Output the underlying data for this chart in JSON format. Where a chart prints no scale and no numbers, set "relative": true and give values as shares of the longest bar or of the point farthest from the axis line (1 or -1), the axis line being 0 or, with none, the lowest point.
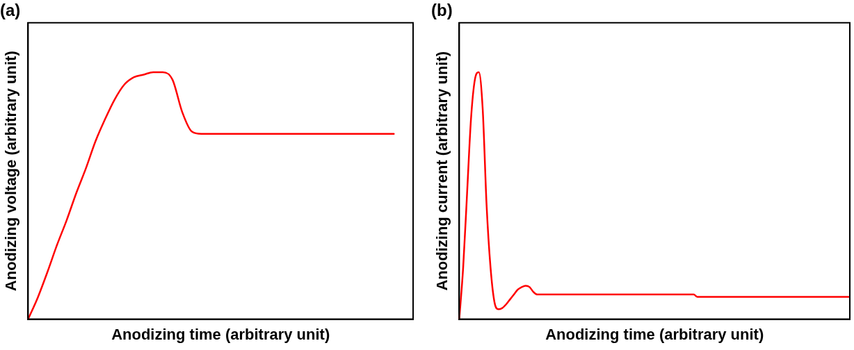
{
  "chart_data": [
    {
      "type": "line",
      "title": "(a)",
      "xlabel": "Anodizing time (arbitrary unit)",
      "ylabel": "Anodizing voltage (arbitrary unit)",
      "relative": true,
      "grid": false,
      "legend": false,
      "marker": "none",
      "line_style": "solid",
      "categories": [
        null,
        null,
        null,
        null,
        null,
        null,
        null,
        null,
        null,
        null,
        null,
        null,
        null,
        null,
        null,
        null,
        null,
        null,
        null,
        null,
        null,
        null,
        null,
        null,
        null,
        null,
        null,
        null,
        null,
        null,
        null,
        null,
        null,
        null,
        null,
        null,
        null,
        null,
        null,
        null,
        null
      ],
      "series": [
        {
          "color": "#ff0000",
          "values": [
            0,
            0.087,
            0.19,
            0.3,
            0.4,
            0.51,
            0.61,
            0.72,
            0.81,
            0.89,
            0.95,
            0.98,
            0.99,
            1,
            1,
            0.97,
            0.84,
            0.76,
            0.75,
            0.75,
            0.75,
            0.75,
            0.75,
            0.75,
            0.75,
            0.75,
            0.75,
            0.75,
            0.75,
            0.75,
            0.75,
            0.75,
            0.75,
            0.75,
            0.75,
            0.75,
            0.75,
            0.75,
            0.75,
            null,
            null
          ]
        }
      ]
    },
    {
      "type": "line",
      "title": "(b)",
      "xlabel": "Anodizing time (arbitrary unit)",
      "ylabel": "Anodizing current (arbitrary unit)",
      "relative": true,
      "grid": false,
      "legend": false,
      "marker": "none",
      "line_style": "solid",
      "categories": [
        null,
        null,
        null,
        null,
        null,
        null,
        null,
        null,
        null,
        null,
        null,
        null,
        null,
        null,
        null,
        null,
        null,
        null,
        null,
        null,
        null,
        null,
        null,
        null,
        null,
        null,
        null,
        null,
        null,
        null,
        null,
        null,
        null,
        null,
        null,
        null,
        null,
        null,
        null,
        null,
        null,
        null,
        null,
        null,
        null,
        null,
        null,
        null,
        null,
        null,
        null,
        null,
        null,
        null,
        null,
        null,
        null,
        null,
        null,
        null,
        null,
        null,
        null,
        null,
        null,
        null,
        null,
        null,
        null,
        null,
        null,
        null,
        null,
        null,
        null,
        null,
        null,
        null,
        null,
        null,
        null,
        null,
        null,
        null,
        null,
        null,
        null,
        null,
        null,
        null,
        null,
        null,
        null,
        null,
        null,
        null,
        null,
        null,
        null,
        null,
        null
      ],
      "series": [
        {
          "color": "#ff0000",
          "values": [
            0,
            0.21,
            0.51,
            0.81,
            0.97,
            1,
            0.85,
            0.46,
            0.21,
            0.07,
            0.04,
            0.045,
            0.06,
            0.08,
            0.1,
            0.12,
            0.13,
            0.135,
            0.13,
            0.11,
            0.1,
            0.1,
            0.1,
            0.1,
            0.1,
            0.1,
            0.1,
            0.1,
            0.1,
            0.1,
            0.1,
            0.1,
            0.1,
            0.1,
            0.1,
            0.1,
            0.1,
            0.1,
            0.1,
            0.1,
            0.1,
            0.1,
            0.1,
            0.1,
            0.1,
            0.1,
            0.1,
            0.1,
            0.1,
            0.1,
            0.1,
            0.1,
            0.1,
            0.1,
            0.1,
            0.1,
            0.1,
            0.1,
            0.1,
            0.1,
            0.1,
            0.09,
            0.09,
            0.09,
            0.09,
            0.09,
            0.09,
            0.09,
            0.09,
            0.09,
            0.09,
            0.09,
            0.09,
            0.09,
            0.09,
            0.09,
            0.09,
            0.09,
            0.09,
            0.09,
            0.09,
            0.09,
            0.09,
            0.09,
            0.09,
            0.09,
            0.09,
            0.09,
            0.09,
            0.09,
            0.09,
            0.09,
            0.09,
            0.09,
            0.09,
            0.09,
            0.09,
            0.09,
            0.09,
            0.09,
            0.09
          ]
        }
      ]
    }
  ]
}
